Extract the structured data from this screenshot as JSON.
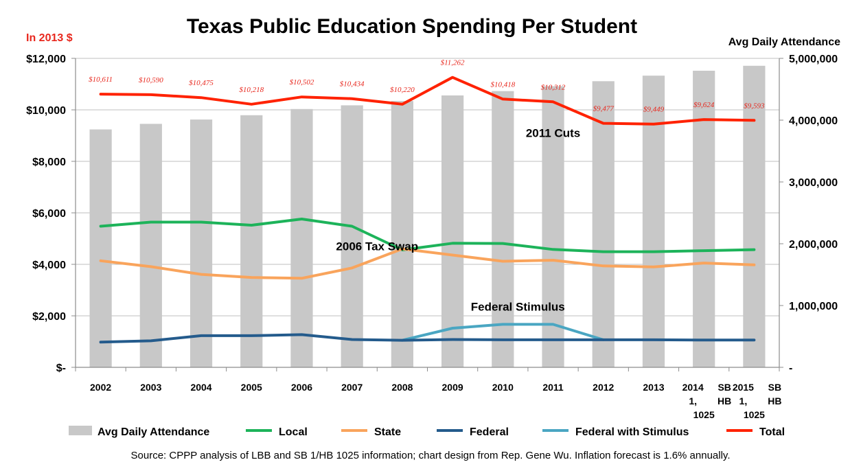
{
  "chart_data": {
    "type": "bar+line",
    "title": "Texas Public Education Spending Per Student",
    "left_axis_label": "In 2013 $",
    "right_axis_label": "Avg Daily Attendance",
    "left_ylim": [
      0,
      12000
    ],
    "right_ylim": [
      0,
      5000000
    ],
    "left_ticks": [
      {
        "value": 0,
        "label": "$-"
      },
      {
        "value": 2000,
        "label": "$2,000"
      },
      {
        "value": 4000,
        "label": "$4,000"
      },
      {
        "value": 6000,
        "label": "$6,000"
      },
      {
        "value": 8000,
        "label": "$8,000"
      },
      {
        "value": 10000,
        "label": "$10,000"
      },
      {
        "value": 12000,
        "label": "$12,000"
      }
    ],
    "right_ticks": [
      {
        "value": 0,
        "label": "-"
      },
      {
        "value": 1000000,
        "label": "1,000,000"
      },
      {
        "value": 2000000,
        "label": "2,000,000"
      },
      {
        "value": 3000000,
        "label": "3,000,000"
      },
      {
        "value": 4000000,
        "label": "4,000,000"
      },
      {
        "value": 5000000,
        "label": "5,000,000"
      }
    ],
    "categories": [
      [
        "2002"
      ],
      [
        "2003"
      ],
      [
        "2004"
      ],
      [
        "2005"
      ],
      [
        "2006"
      ],
      [
        "2007"
      ],
      [
        "2008"
      ],
      [
        "2009"
      ],
      [
        "2010"
      ],
      [
        "2011"
      ],
      [
        "2012"
      ],
      [
        "2013"
      ],
      [
        "2014",
        "SB",
        "1,",
        "HB",
        "1025"
      ],
      [
        "2015",
        "SB",
        "1,",
        "HB",
        "1025"
      ]
    ],
    "bars": {
      "name": "Avg Daily Attendance",
      "color": "#c8c8c8",
      "values": [
        3850000,
        3940000,
        4010000,
        4080000,
        4180000,
        4240000,
        4310000,
        4400000,
        4470000,
        4550000,
        4630000,
        4720000,
        4800000,
        4880000
      ]
    },
    "series": [
      {
        "name": "Local",
        "color": "#1db35a",
        "values": [
          5480,
          5640,
          5640,
          5520,
          5760,
          5480,
          4560,
          4820,
          4810,
          4580,
          4490,
          4490,
          4530,
          4570
        ]
      },
      {
        "name": "State",
        "color": "#f9a45c",
        "values": [
          4140,
          3910,
          3610,
          3490,
          3460,
          3860,
          4600,
          4360,
          4120,
          4160,
          3940,
          3900,
          4050,
          3980
        ]
      },
      {
        "name": "Federal",
        "color": "#245b8c",
        "values": [
          980,
          1030,
          1230,
          1230,
          1270,
          1080,
          1050,
          1080,
          1070,
          1070,
          1070,
          1070,
          1060,
          1060
        ]
      },
      {
        "name": "Federal with Stimulus",
        "color": "#4aa6c2",
        "values": [
          null,
          null,
          null,
          null,
          null,
          null,
          1050,
          1520,
          1670,
          1670,
          1070,
          null,
          null,
          null
        ]
      },
      {
        "name": "Total",
        "color": "#ff2200",
        "values": [
          10611,
          10590,
          10475,
          10218,
          10502,
          10434,
          10220,
          11262,
          10418,
          10312,
          9477,
          9449,
          9624,
          9593
        ]
      }
    ],
    "total_labels": [
      "$10,611",
      "$10,590",
      "$10,475",
      "$10,218",
      "$10,502",
      "$10,434",
      "$10,220",
      "$11,262",
      "$10,418",
      "$10,312",
      "$9,477",
      "$9,449",
      "$9,624",
      "$9,593"
    ],
    "annotations": [
      {
        "text": "2011 Cuts",
        "category": 9,
        "value": 8950
      },
      {
        "text": "2006 Tax Swap",
        "category": 5.5,
        "value": 4550
      },
      {
        "text": "Federal Stimulus",
        "category": 8.3,
        "value": 2200
      }
    ],
    "legend": [
      "Avg Daily Attendance",
      "Local",
      "State",
      "Federal",
      "Federal with Stimulus",
      "Total"
    ],
    "legend_position": "bottom"
  },
  "source_text": "Source:  CPPP analysis of LBB and SB 1/HB 1025 information;  chart design from Rep. Gene Wu.   Inflation forecast is 1.6% annually.",
  "colors": {
    "title": "#000000",
    "unit_left": "#e8271d",
    "axis": "#8c8c8c",
    "gridline": "#bfbfbf"
  }
}
